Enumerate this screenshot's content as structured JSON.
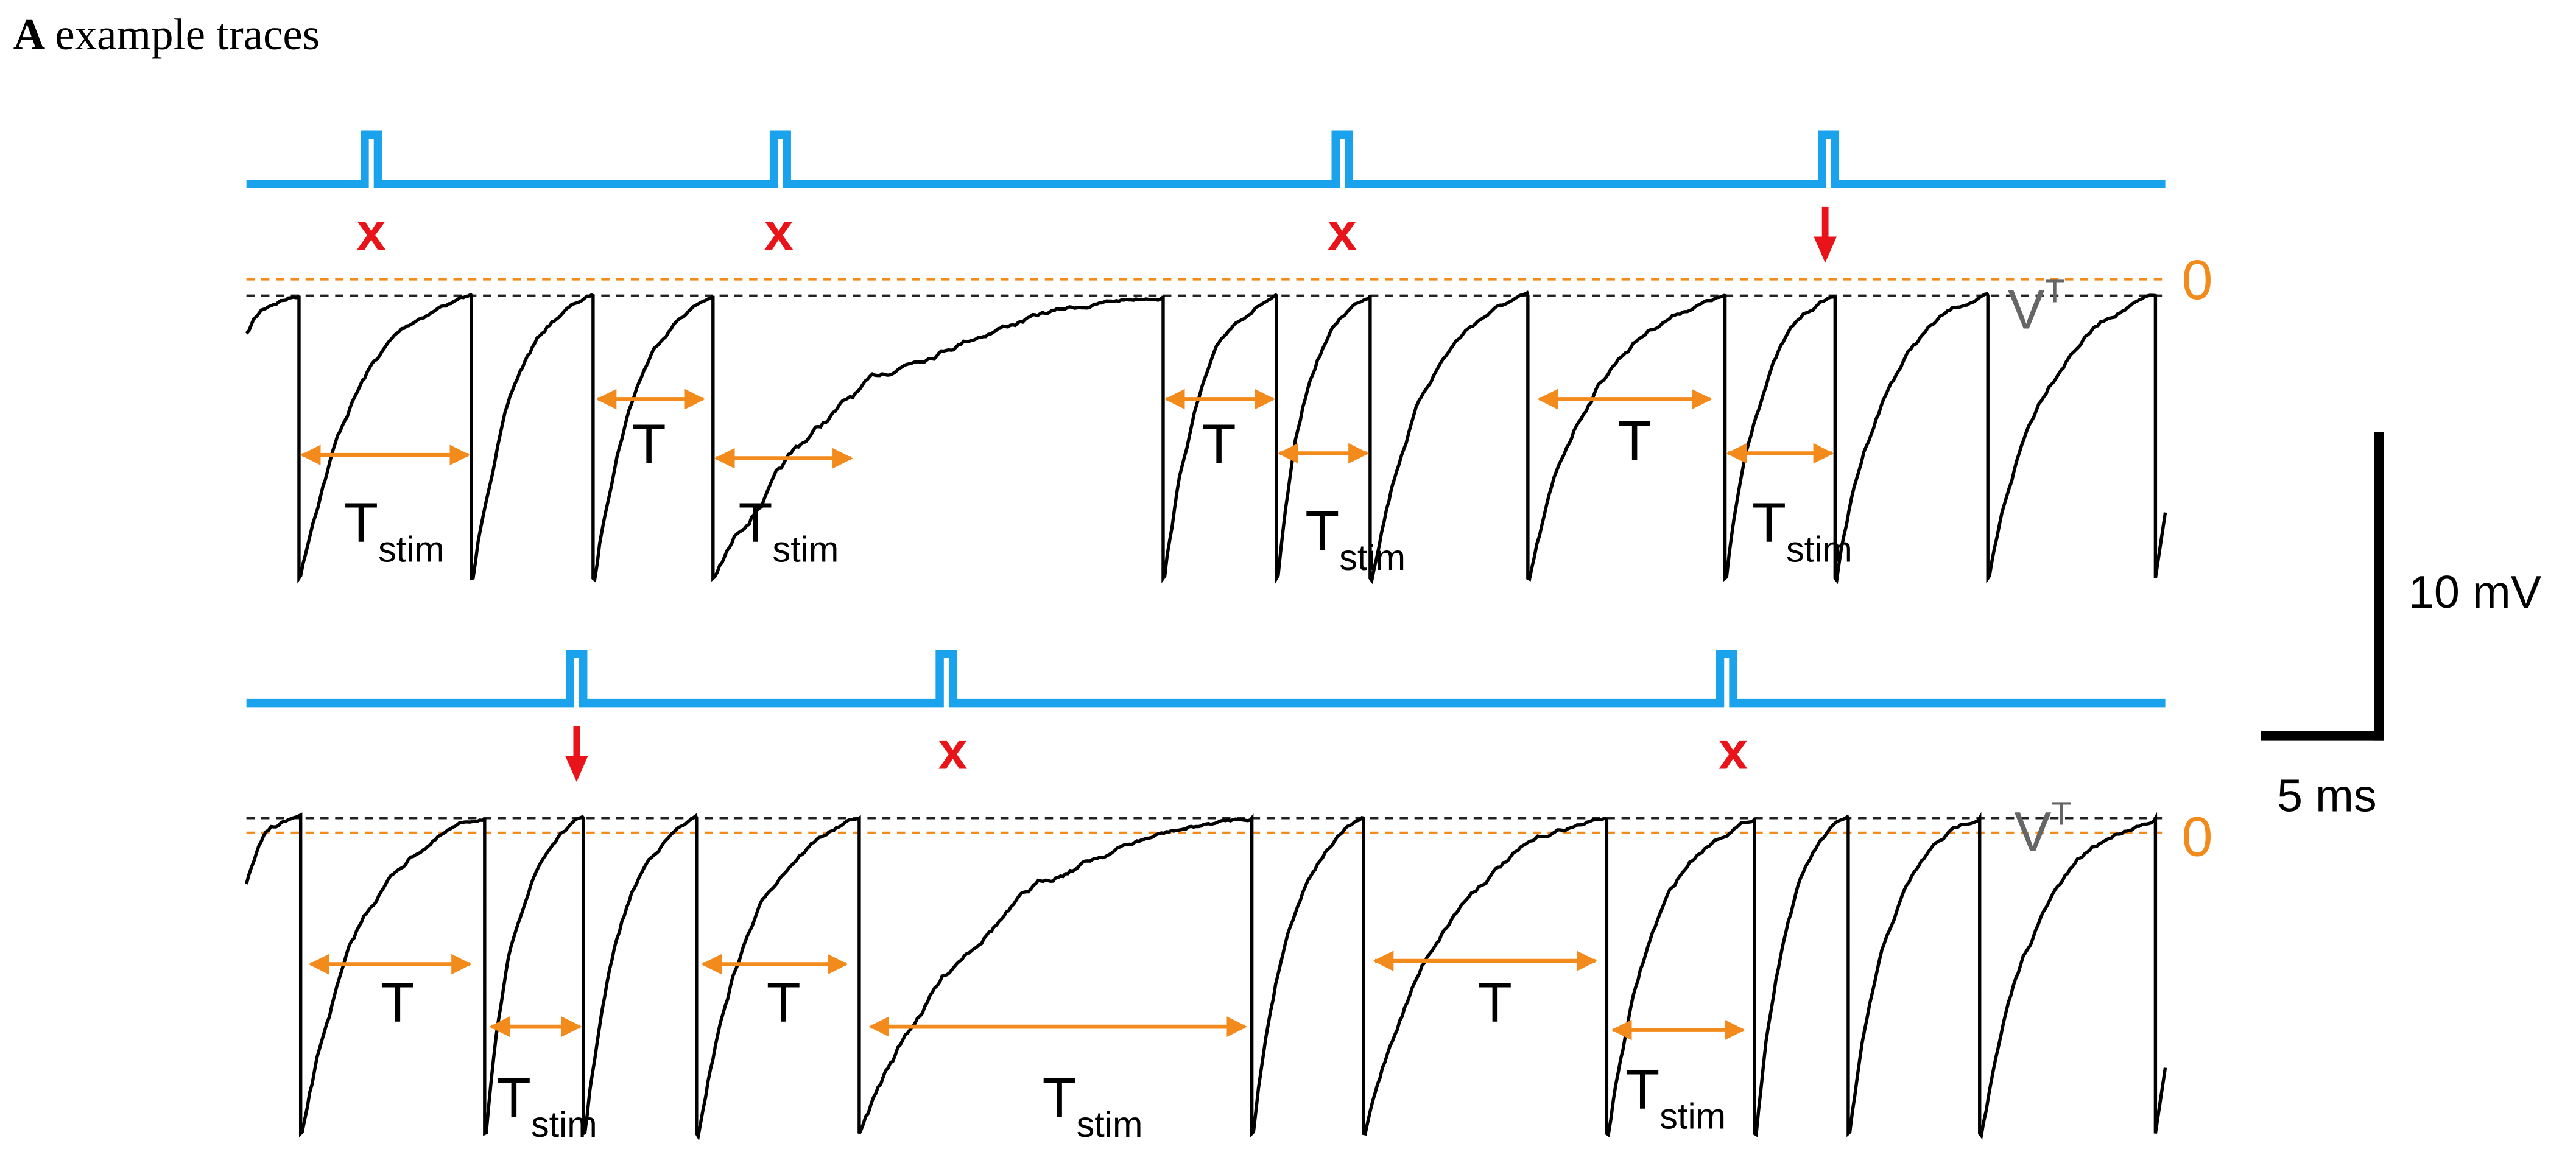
{
  "panel": {
    "letter": "A",
    "title": "example traces"
  },
  "rows": [
    {
      "stim_markers": [
        "x",
        "x",
        "x"
      ],
      "threshold_label": {
        "symbol": "V",
        "superscript": "T"
      },
      "zero_label": "0",
      "intervals": [
        {
          "symbol": "T",
          "subscript": "stim"
        },
        {
          "symbol": "T"
        },
        {
          "symbol": "T",
          "subscript": "stim"
        },
        {
          "symbol": "T"
        },
        {
          "symbol": "T",
          "subscript": "stim"
        },
        {
          "symbol": "T"
        },
        {
          "symbol": "T",
          "subscript": "stim"
        }
      ]
    },
    {
      "stim_markers": [
        "x",
        "x"
      ],
      "threshold_label": {
        "symbol": "V",
        "superscript": "T"
      },
      "zero_label": "0",
      "intervals": [
        {
          "symbol": "T"
        },
        {
          "symbol": "T",
          "subscript": "stim"
        },
        {
          "symbol": "T"
        },
        {
          "symbol": "T",
          "subscript": "stim"
        },
        {
          "symbol": "T"
        },
        {
          "symbol": "T",
          "subscript": "stim"
        }
      ]
    }
  ],
  "scale_bar": {
    "vertical_label": "10 mV",
    "horizontal_label": "5 ms"
  }
}
